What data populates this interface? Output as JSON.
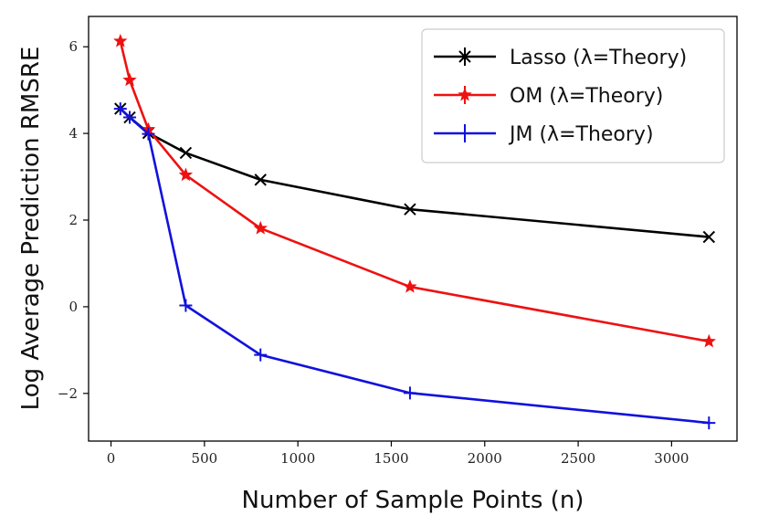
{
  "chart_data": {
    "type": "line",
    "xlabel": "Number of Sample Points (n)",
    "ylabel": "Log Average Prediction RMSRE",
    "xlim": [
      -120,
      3350
    ],
    "ylim": [
      -3.1,
      6.7
    ],
    "xticks": [
      0,
      500,
      1000,
      1500,
      2000,
      2500,
      3000
    ],
    "yticks": [
      -2,
      0,
      2,
      4,
      6
    ],
    "ytick_labels": [
      "−2",
      "0",
      "2",
      "4",
      "6"
    ],
    "grid": false,
    "legend_position": "top-right",
    "series": [
      {
        "name": "Lasso (λ=Theory)",
        "color": "#000000",
        "marker": "x",
        "x": [
          50,
          100,
          200,
          400,
          800,
          1600,
          3200
        ],
        "y": [
          4.57,
          4.37,
          4.01,
          3.55,
          2.93,
          2.25,
          1.61
        ]
      },
      {
        "name": "OM (λ=Theory)",
        "color": "#ee1111",
        "marker": "star",
        "x": [
          50,
          100,
          200,
          400,
          800,
          1600,
          3200
        ],
        "y": [
          6.13,
          5.23,
          4.09,
          3.04,
          1.81,
          0.46,
          -0.8
        ]
      },
      {
        "name": "JM (λ=Theory)",
        "color": "#1111dd",
        "marker": "plus",
        "x": [
          50,
          100,
          200,
          400,
          800,
          1600,
          3200
        ],
        "y": [
          4.57,
          4.37,
          3.99,
          0.03,
          -1.11,
          -1.99,
          -2.68
        ]
      }
    ]
  }
}
